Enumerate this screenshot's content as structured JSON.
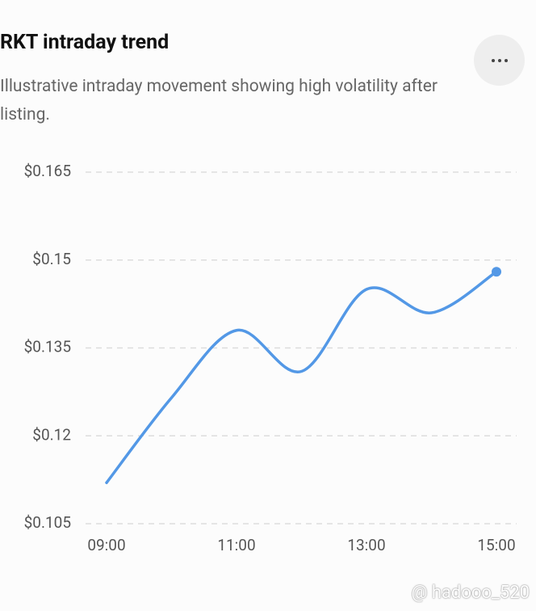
{
  "chart_data": {
    "type": "line",
    "title": "RKT intraday trend",
    "subtitle": "Illustrative intraday movement showing high volatility after listing.",
    "categories": [
      "09:00",
      null,
      "11:00",
      null,
      "13:00",
      null,
      "15:00"
    ],
    "values": [
      0.112,
      0.1265,
      0.138,
      0.131,
      0.145,
      0.141,
      0.148
    ],
    "color": "#5398e6",
    "ylim": [
      0.105,
      0.165
    ],
    "yticks": [
      {
        "value": 0.105,
        "label": "$0.105"
      },
      {
        "value": 0.12,
        "label": "$0.12"
      },
      {
        "value": 0.135,
        "label": "$0.135"
      },
      {
        "value": 0.15,
        "label": "$0.15"
      },
      {
        "value": 0.165,
        "label": "$0.165"
      }
    ],
    "grid": true
  },
  "watermark": "@ hadooo_520"
}
